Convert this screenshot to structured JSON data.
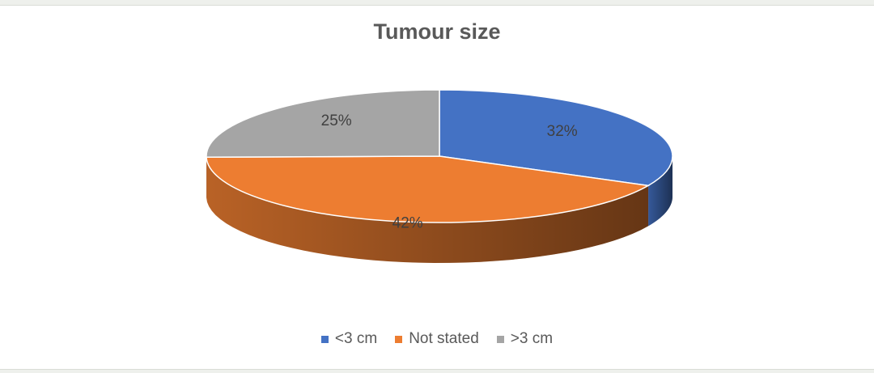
{
  "chart_data": {
    "type": "pie",
    "title": "Tumour size",
    "slices": [
      {
        "label": "<3 cm",
        "value": 32,
        "data_label": "32%",
        "color": "#4472C4"
      },
      {
        "label": "Not stated",
        "value": 42,
        "data_label": "42%",
        "color": "#ED7D31"
      },
      {
        "label": ">3 cm",
        "value": 25,
        "data_label": "25%",
        "color": "#A5A5A5"
      }
    ],
    "legend_position": "bottom",
    "style": "3d"
  }
}
